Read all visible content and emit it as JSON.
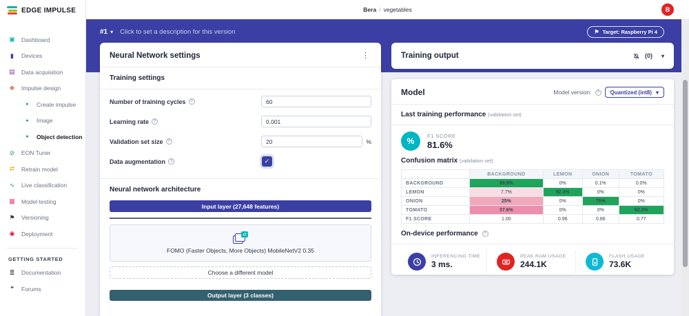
{
  "glyphs": {
    "help": "?",
    "kebab": "⋮",
    "caret": "▾",
    "check": "✓",
    "target_flag": "⚑",
    "badge_arrows": "⇄",
    "percent": "%"
  },
  "brand": {
    "name": "EDGE IMPULSE"
  },
  "topbar": {
    "breadcrumb": {
      "project": "Bera",
      "separator": "/",
      "page": "vegetables"
    },
    "avatar_initial": "B"
  },
  "sidebar": {
    "items": [
      {
        "id": "dashboard",
        "label": "Dashboard",
        "glyph": "▣",
        "color": "#14b5b0",
        "sub": false,
        "active": false
      },
      {
        "id": "devices",
        "label": "Devices",
        "glyph": "▮",
        "color": "#3b3fa4",
        "sub": false,
        "active": false
      },
      {
        "id": "data-acquisition",
        "label": "Data acquisition",
        "glyph": "▤",
        "color": "#7a3fa5",
        "sub": false,
        "active": false
      },
      {
        "id": "impulse-design",
        "label": "Impulse design",
        "glyph": "❖",
        "color": "#e4572e",
        "sub": false,
        "active": false
      },
      {
        "id": "create-impulse",
        "label": "Create impulse",
        "glyph": "●",
        "color": "#21a15a",
        "sub": true,
        "active": false
      },
      {
        "id": "image",
        "label": "Image",
        "glyph": "●",
        "color": "#21a15a",
        "sub": true,
        "active": false
      },
      {
        "id": "object-detection",
        "label": "Object detection",
        "glyph": "●",
        "color": "#21a15a",
        "sub": true,
        "active": true
      },
      {
        "id": "eon-tuner",
        "label": "EON Tuner",
        "glyph": "⊘",
        "color": "#21a15a",
        "sub": false,
        "active": false
      },
      {
        "id": "retrain-model",
        "label": "Retrain model",
        "glyph": "⇄",
        "color": "#e3b505",
        "sub": false,
        "active": false
      },
      {
        "id": "live-classification",
        "label": "Live classification",
        "glyph": "∿",
        "color": "#0e9f6e",
        "sub": false,
        "active": false
      },
      {
        "id": "model-testing",
        "label": "Model testing",
        "glyph": "▩",
        "color": "#e84a7a",
        "sub": false,
        "active": false
      },
      {
        "id": "versioning",
        "label": "Versioning",
        "glyph": "⚑",
        "color": "#2b3550",
        "sub": false,
        "active": false
      },
      {
        "id": "deployment",
        "label": "Deployment",
        "glyph": "◉",
        "color": "#c81e3c",
        "sub": false,
        "active": false
      }
    ],
    "section_title": "GETTING STARTED",
    "secondary_items": [
      {
        "id": "documentation",
        "label": "Documentation",
        "glyph": "≣",
        "color": "#33364a",
        "sub": false,
        "active": false
      },
      {
        "id": "forums",
        "label": "Forums",
        "glyph": "❝",
        "color": "#33364a",
        "sub": false,
        "active": false
      }
    ]
  },
  "version_bar": {
    "version": "#1",
    "description": "Click to set a description for this version",
    "target_badge": "Target: Raspberry Pi 4"
  },
  "nn_panel": {
    "title": "Neural Network settings",
    "training_section": "Training settings",
    "architecture_section": "Neural network architecture",
    "fields": [
      {
        "id": "training-cycles",
        "label": "Number of training cycles",
        "type": "input",
        "value": "60"
      },
      {
        "id": "learning-rate",
        "label": "Learning rate",
        "type": "input",
        "value": "0.001"
      },
      {
        "id": "validation-set-size",
        "label": "Validation set size",
        "type": "input",
        "value": "20",
        "suffix": "%"
      },
      {
        "id": "data-augmentation",
        "label": "Data augmentation",
        "type": "checkbox",
        "checked": true
      }
    ],
    "architecture": {
      "input_layer": "Input layer (27,648 features)",
      "model_name": "FOMO (Faster Objects, More Objects) MobileNetV2 0.35",
      "choose_button": "Choose a different model",
      "output_layer": "Output layer (3 classes)"
    }
  },
  "training_output": {
    "title": "Training output",
    "notification_count": "(0)"
  },
  "model_panel": {
    "title": "Model",
    "version_label": "Model version:",
    "version_value": "Quantized (int8)",
    "last_training": {
      "heading": "Last training performance",
      "subheading": "(validation set)",
      "f1_label": "F1 SCORE",
      "f1_value": "81.6%"
    },
    "confusion_matrix": {
      "heading": "Confusion matrix",
      "subheading": "(validation set)",
      "columns": [
        "BACKGROUND",
        "LEMON",
        "ONION",
        "TOMATO"
      ],
      "rows": [
        {
          "label": "BACKGROUND",
          "cells": [
            {
              "text": "99.9%",
              "style": "green"
            },
            {
              "text": "0%"
            },
            {
              "text": "0.1%"
            },
            {
              "text": "0.0%"
            }
          ]
        },
        {
          "label": "LEMON",
          "cells": [
            {
              "text": "7.7%",
              "style": "pink-light"
            },
            {
              "text": "92.3%",
              "style": "green"
            },
            {
              "text": "0%"
            },
            {
              "text": "0%"
            }
          ]
        },
        {
          "label": "ONION",
          "cells": [
            {
              "text": "25%",
              "style": "pink-mid"
            },
            {
              "text": "0%"
            },
            {
              "text": "75%",
              "style": "green"
            },
            {
              "text": "0%"
            }
          ]
        },
        {
          "label": "TOMATO",
          "cells": [
            {
              "text": "37.6%",
              "style": "pink-dark"
            },
            {
              "text": "0%"
            },
            {
              "text": "0%"
            },
            {
              "text": "62.3%",
              "style": "green"
            }
          ]
        },
        {
          "label": "F1 SCORE",
          "cells": [
            {
              "text": "1.00"
            },
            {
              "text": "0.96"
            },
            {
              "text": "0.86"
            },
            {
              "text": "0.77"
            }
          ]
        }
      ]
    },
    "performance": {
      "heading": "On-device performance",
      "metrics": [
        {
          "id": "inferencing-time",
          "label": "INFERENCING TIME",
          "value": "3 ms.",
          "icon": "clock-icon",
          "color": "#3b3fa4"
        },
        {
          "id": "peak-ram-usage",
          "label": "PEAK RAM USAGE",
          "value": "244.1K",
          "icon": "ram-icon",
          "color": "#e02424"
        },
        {
          "id": "flash-usage",
          "label": "FLASH USAGE",
          "value": "73.6K",
          "icon": "flash-icon",
          "color": "#0fb9d5"
        }
      ]
    }
  }
}
